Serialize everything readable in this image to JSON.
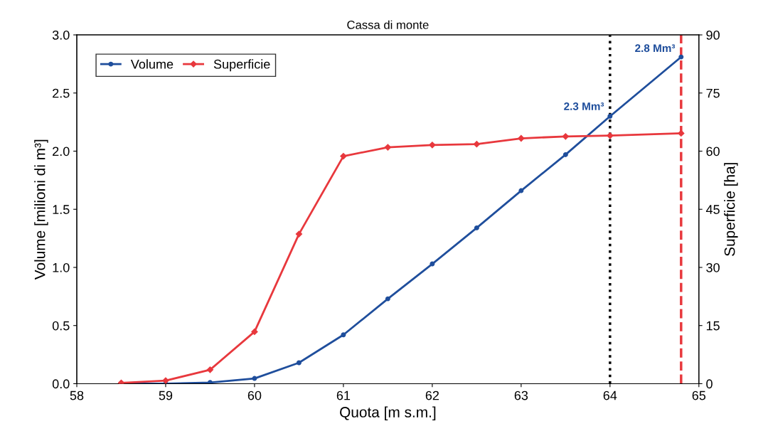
{
  "chart_data": {
    "type": "line",
    "title": "Cassa di monte",
    "xlabel": "Quota [m s.m.]",
    "ylabel": "Volume [milioni di m³]",
    "y2label": "Superficie [ha]",
    "x": [
      58.5,
      59,
      59.5,
      60,
      60.5,
      61,
      61.5,
      62,
      62.5,
      63,
      63.5,
      64,
      64.8
    ],
    "series": [
      {
        "name": "Volume",
        "color": "#1f4e9c",
        "marker": "circle",
        "values": [
          0.0,
          0.0,
          0.01,
          0.045,
          0.18,
          0.42,
          0.73,
          1.03,
          1.34,
          1.66,
          1.97,
          2.3,
          2.81
        ]
      },
      {
        "name": "Superficie",
        "color": "#e8383d",
        "marker": "diamond",
        "axis": "y2",
        "values": [
          0.2,
          0.8,
          3.6,
          13.4,
          38.6,
          58.7,
          61.0,
          61.6,
          61.8,
          63.3,
          63.8,
          64.0,
          64.6
        ]
      }
    ],
    "xlim": [
      58,
      65
    ],
    "xticks": [
      58,
      59,
      60,
      61,
      62,
      63,
      64,
      65
    ],
    "ylim": [
      0,
      3
    ],
    "yticks": [
      {
        "value": 0,
        "label": "0.0"
      },
      {
        "value": 0.5,
        "label": "0.5"
      },
      {
        "value": 1,
        "label": "1.0"
      },
      {
        "value": 1.5,
        "label": "1.5"
      },
      {
        "value": 2,
        "label": "2.0"
      },
      {
        "value": 2.5,
        "label": "2.5"
      },
      {
        "value": 3,
        "label": "3.0"
      }
    ],
    "y2lim": [
      0,
      90
    ],
    "y2ticks": [
      0,
      15,
      30,
      45,
      60,
      75,
      90
    ],
    "ref_lines": [
      {
        "axis": "x",
        "value": 64,
        "color": "#000000",
        "line_style": "dotted"
      },
      {
        "axis": "x",
        "value": 64.8,
        "color": "#e8383d",
        "line_style": "dashed"
      }
    ],
    "annotations": [
      {
        "text": "2.3 Mm³",
        "x": 64,
        "y": 2.3
      },
      {
        "text": "2.8 Mm³",
        "x": 64.8,
        "y": 2.8
      }
    ],
    "legend": "top left",
    "grid": false,
    "line_style": "solid"
  }
}
